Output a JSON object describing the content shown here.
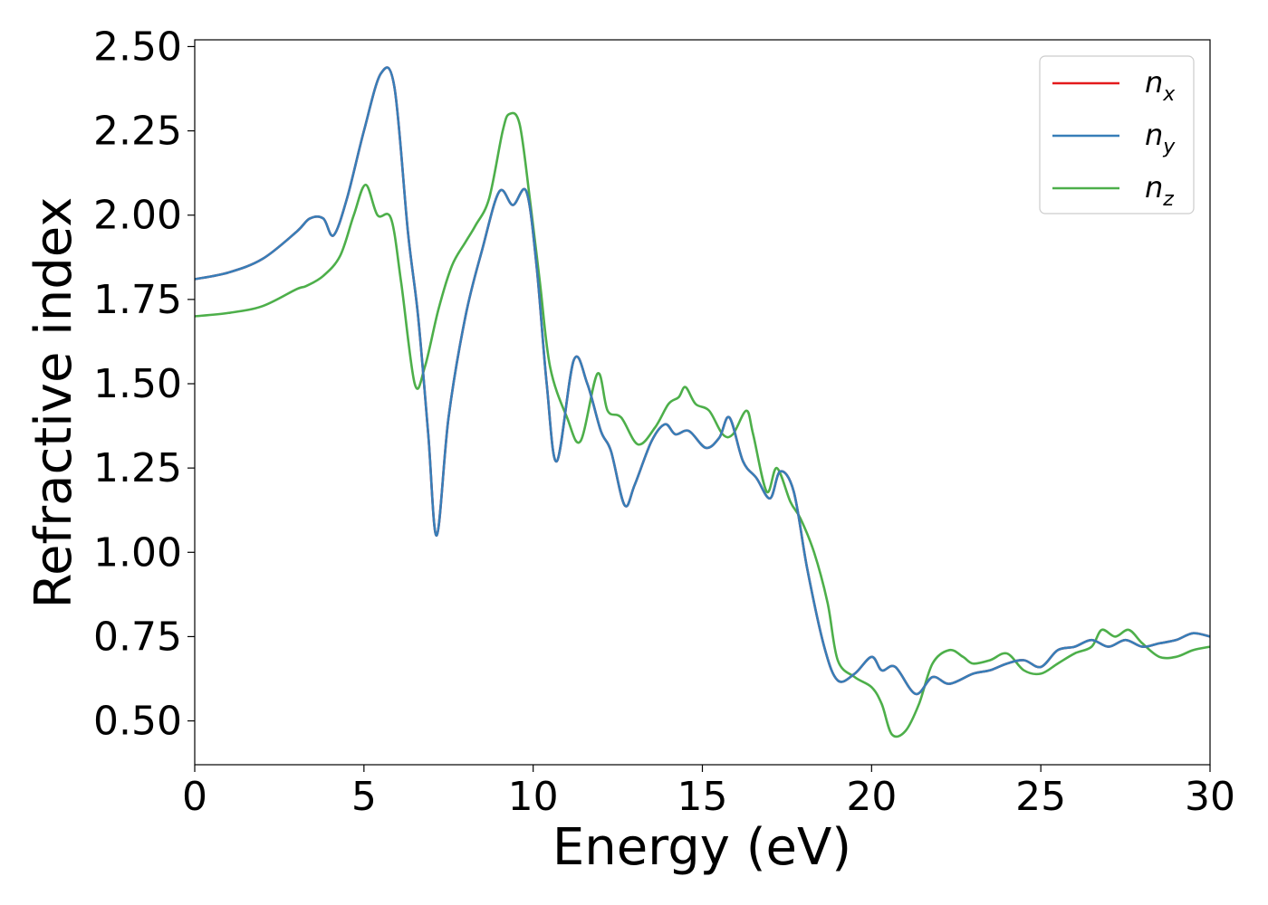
{
  "chart_data": {
    "type": "line",
    "xlabel": "Energy (eV)",
    "ylabel": "Refractive index",
    "xlim": [
      0,
      30
    ],
    "ylim": [
      0.37,
      2.52
    ],
    "xticks": [
      0,
      5,
      10,
      15,
      20,
      25,
      30
    ],
    "xtick_labels": [
      "0",
      "5",
      "10",
      "15",
      "20",
      "25",
      "30"
    ],
    "yticks": [
      0.5,
      0.75,
      1.0,
      1.25,
      1.5,
      1.75,
      2.0,
      2.25,
      2.5
    ],
    "ytick_labels": [
      "0.50",
      "0.75",
      "1.00",
      "1.25",
      "1.50",
      "1.75",
      "2.00",
      "2.25",
      "2.50"
    ],
    "grid": false,
    "legend_position": "top-right",
    "series": [
      {
        "name": "n",
        "subscript": "x",
        "color": "#e41a1c",
        "x": [
          0,
          1,
          2,
          3,
          3.4,
          3.8,
          4.1,
          4.5,
          5,
          5.5,
          5.9,
          6.3,
          6.6,
          6.9,
          7.15,
          7.5,
          8,
          8.5,
          9,
          9.4,
          9.8,
          10.1,
          10.4,
          10.7,
          11.2,
          11.6,
          12,
          12.3,
          12.7,
          13,
          13.5,
          13.9,
          14.2,
          14.6,
          15.1,
          15.5,
          15.8,
          16.2,
          16.6,
          17,
          17.3,
          17.7,
          18.1,
          18.6,
          19,
          19.5,
          20,
          20.3,
          20.7,
          21.3,
          21.8,
          22.3,
          23,
          23.5,
          24,
          24.5,
          25,
          25.5,
          26,
          26.5,
          27,
          27.5,
          28,
          28.5,
          29,
          29.5,
          30
        ],
        "y": [
          1.81,
          1.83,
          1.87,
          1.95,
          1.99,
          1.99,
          1.94,
          2.05,
          2.25,
          2.42,
          2.38,
          1.95,
          1.7,
          1.35,
          1.05,
          1.4,
          1.7,
          1.9,
          2.07,
          2.03,
          2.07,
          1.85,
          1.5,
          1.27,
          1.57,
          1.5,
          1.36,
          1.3,
          1.14,
          1.2,
          1.33,
          1.38,
          1.35,
          1.36,
          1.31,
          1.34,
          1.4,
          1.27,
          1.22,
          1.16,
          1.24,
          1.18,
          0.95,
          0.72,
          0.62,
          0.64,
          0.69,
          0.65,
          0.66,
          0.58,
          0.63,
          0.61,
          0.64,
          0.65,
          0.67,
          0.68,
          0.66,
          0.71,
          0.72,
          0.74,
          0.72,
          0.74,
          0.72,
          0.73,
          0.74,
          0.76,
          0.75
        ]
      },
      {
        "name": "n",
        "subscript": "y",
        "color": "#377eb8",
        "x": [
          0,
          1,
          2,
          3,
          3.4,
          3.8,
          4.1,
          4.5,
          5,
          5.5,
          5.9,
          6.3,
          6.6,
          6.9,
          7.15,
          7.5,
          8,
          8.5,
          9,
          9.4,
          9.8,
          10.1,
          10.4,
          10.7,
          11.2,
          11.6,
          12,
          12.3,
          12.7,
          13,
          13.5,
          13.9,
          14.2,
          14.6,
          15.1,
          15.5,
          15.8,
          16.2,
          16.6,
          17,
          17.3,
          17.7,
          18.1,
          18.6,
          19,
          19.5,
          20,
          20.3,
          20.7,
          21.3,
          21.8,
          22.3,
          23,
          23.5,
          24,
          24.5,
          25,
          25.5,
          26,
          26.5,
          27,
          27.5,
          28,
          28.5,
          29,
          29.5,
          30
        ],
        "y": [
          1.81,
          1.83,
          1.87,
          1.95,
          1.99,
          1.99,
          1.94,
          2.05,
          2.25,
          2.42,
          2.38,
          1.95,
          1.7,
          1.35,
          1.05,
          1.4,
          1.7,
          1.9,
          2.07,
          2.03,
          2.07,
          1.85,
          1.5,
          1.27,
          1.57,
          1.5,
          1.36,
          1.3,
          1.14,
          1.2,
          1.33,
          1.38,
          1.35,
          1.36,
          1.31,
          1.34,
          1.4,
          1.27,
          1.22,
          1.16,
          1.24,
          1.18,
          0.95,
          0.72,
          0.62,
          0.64,
          0.69,
          0.65,
          0.66,
          0.58,
          0.63,
          0.61,
          0.64,
          0.65,
          0.67,
          0.68,
          0.66,
          0.71,
          0.72,
          0.74,
          0.72,
          0.74,
          0.72,
          0.73,
          0.74,
          0.76,
          0.75
        ]
      },
      {
        "name": "n",
        "subscript": "z",
        "color": "#4daf4a",
        "x": [
          0,
          1,
          2,
          3,
          3.3,
          3.8,
          4.3,
          4.7,
          5.05,
          5.4,
          5.8,
          6.1,
          6.5,
          6.8,
          7.2,
          7.6,
          8,
          8.3,
          8.7,
          9.1,
          9.3,
          9.6,
          9.9,
          10.2,
          10.5,
          11,
          11.4,
          11.9,
          12.2,
          12.6,
          13.1,
          13.6,
          14,
          14.3,
          14.5,
          14.8,
          15.2,
          15.6,
          15.9,
          16.3,
          16.5,
          16.9,
          17.2,
          17.6,
          17.9,
          18.3,
          18.7,
          19,
          19.5,
          20,
          20.3,
          20.6,
          21,
          21.4,
          21.8,
          22.3,
          22.7,
          23,
          23.5,
          24,
          24.5,
          25,
          25.5,
          26,
          26.5,
          26.8,
          27.2,
          27.6,
          28,
          28.5,
          29,
          29.5,
          30
        ],
        "y": [
          1.7,
          1.71,
          1.73,
          1.78,
          1.79,
          1.82,
          1.88,
          2.0,
          2.09,
          2.0,
          1.99,
          1.8,
          1.5,
          1.55,
          1.72,
          1.85,
          1.92,
          1.97,
          2.05,
          2.25,
          2.3,
          2.27,
          2.05,
          1.8,
          1.55,
          1.4,
          1.33,
          1.53,
          1.42,
          1.4,
          1.32,
          1.37,
          1.44,
          1.46,
          1.49,
          1.44,
          1.42,
          1.35,
          1.35,
          1.42,
          1.35,
          1.18,
          1.25,
          1.15,
          1.1,
          1.0,
          0.85,
          0.68,
          0.63,
          0.6,
          0.55,
          0.46,
          0.47,
          0.55,
          0.67,
          0.71,
          0.69,
          0.67,
          0.68,
          0.7,
          0.65,
          0.64,
          0.67,
          0.7,
          0.72,
          0.77,
          0.75,
          0.77,
          0.73,
          0.69,
          0.69,
          0.71,
          0.72
        ]
      }
    ]
  }
}
